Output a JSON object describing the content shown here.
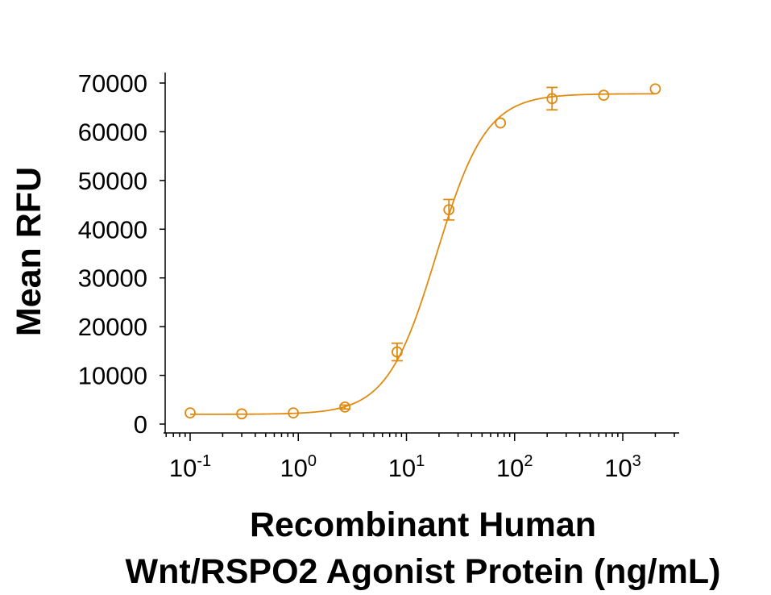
{
  "chart_data": {
    "type": "scatter",
    "title": "",
    "xlabel_lines": [
      "Recombinant Human",
      "Wnt/RSPO2 Agonist Protein (ng/mL)"
    ],
    "ylabel": "Mean RFU",
    "x_scale": "log",
    "xlim": [
      0.06,
      4000
    ],
    "ylim": [
      -2000,
      72000
    ],
    "x_ticks": [
      {
        "value": 0.1,
        "base": "10",
        "exp": "-1"
      },
      {
        "value": 1,
        "base": "10",
        "exp": "0"
      },
      {
        "value": 10,
        "base": "10",
        "exp": "1"
      },
      {
        "value": 100,
        "base": "10",
        "exp": "2"
      },
      {
        "value": 1000,
        "base": "10",
        "exp": "3"
      }
    ],
    "y_ticks": [
      {
        "value": 0,
        "label": "0"
      },
      {
        "value": 10000,
        "label": "10000"
      },
      {
        "value": 20000,
        "label": "20000"
      },
      {
        "value": 30000,
        "label": "30000"
      },
      {
        "value": 40000,
        "label": "40000"
      },
      {
        "value": 50000,
        "label": "50000"
      },
      {
        "value": 60000,
        "label": "60000"
      },
      {
        "value": 70000,
        "label": "70000"
      }
    ],
    "series": [
      {
        "color": "#E08A10",
        "marker": "open-circle",
        "points": [
          {
            "x": 0.1,
            "y": 2300,
            "err": 0
          },
          {
            "x": 0.3,
            "y": 2100,
            "err": 0
          },
          {
            "x": 0.9,
            "y": 2300,
            "err": 0
          },
          {
            "x": 2.7,
            "y": 3500,
            "err": 400
          },
          {
            "x": 8.2,
            "y": 14800,
            "err": 1800
          },
          {
            "x": 24.7,
            "y": 44000,
            "err": 2100
          },
          {
            "x": 74,
            "y": 61800,
            "err": 0
          },
          {
            "x": 222,
            "y": 66800,
            "err": 2300
          },
          {
            "x": 667,
            "y": 67500,
            "err": 0
          },
          {
            "x": 2000,
            "y": 68800,
            "err": 0
          }
        ],
        "fit": {
          "model": "4PL",
          "bottom": 2000,
          "top": 67800,
          "ec50": 19,
          "hill": 1.9
        }
      }
    ],
    "grid": false,
    "legend": "none"
  }
}
